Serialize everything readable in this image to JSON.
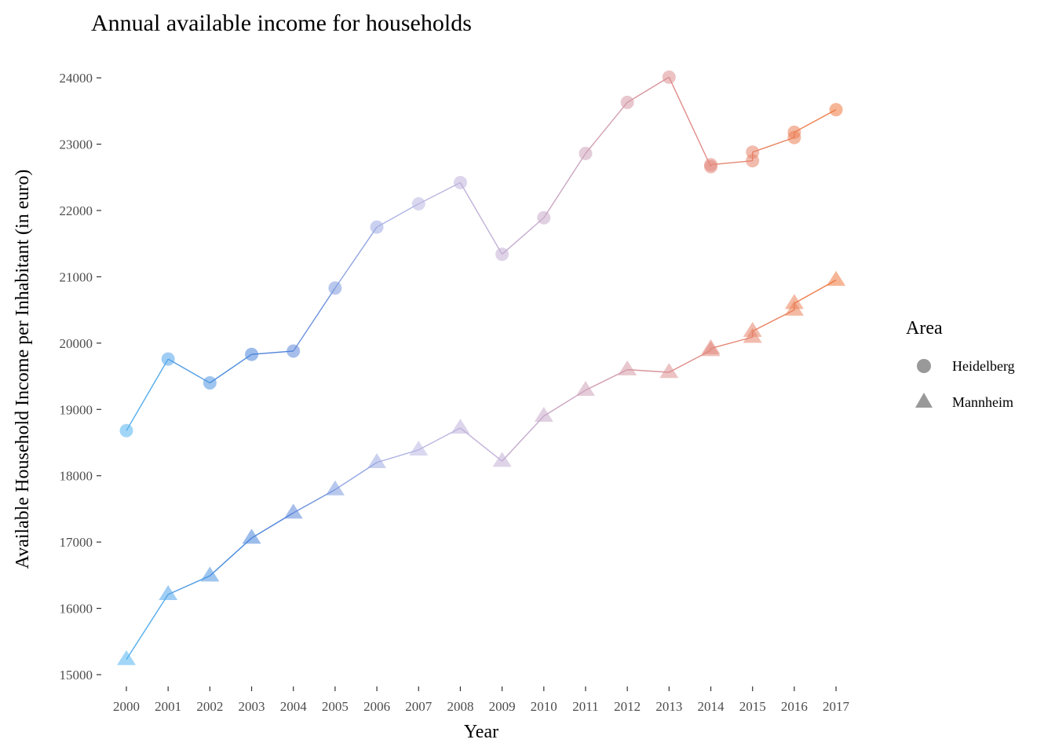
{
  "chart_data": {
    "type": "line",
    "title": "Annual available income for households",
    "xlabel": "Year",
    "ylabel": "Available Household Income per Inhabitant (in euro)",
    "ylim": [
      15000,
      24000
    ],
    "yticks": [
      15000,
      16000,
      17000,
      18000,
      19000,
      20000,
      21000,
      22000,
      23000,
      24000
    ],
    "x": [
      2000,
      2001,
      2002,
      2003,
      2004,
      2005,
      2006,
      2007,
      2008,
      2009,
      2010,
      2011,
      2012,
      2013,
      2014,
      2015,
      2016,
      2017
    ],
    "grid": false,
    "legend": {
      "title": "Area",
      "placement": "right"
    },
    "color_scale": [
      "#56b4f0",
      "#4a7fd8",
      "#b9b9e6",
      "#c9a9c9",
      "#e08a86",
      "#ef7a40"
    ],
    "series": [
      {
        "name": "Heidelberg",
        "marker": "circle",
        "points": [
          [
            2000,
            18680
          ],
          [
            2001,
            19760
          ],
          [
            2002,
            19400
          ],
          [
            2003,
            19830
          ],
          [
            2004,
            19880
          ],
          [
            2005,
            20830
          ],
          [
            2006,
            21750
          ],
          [
            2007,
            22100
          ],
          [
            2008,
            22420
          ],
          [
            2009,
            21340
          ],
          [
            2010,
            21890
          ],
          [
            2011,
            22860
          ],
          [
            2012,
            23630
          ],
          [
            2013,
            24010
          ],
          [
            2014,
            22660
          ],
          [
            2014,
            22690
          ],
          [
            2015,
            22750
          ],
          [
            2015,
            22880
          ],
          [
            2016,
            23100
          ],
          [
            2016,
            23180
          ],
          [
            2017,
            23520
          ]
        ]
      },
      {
        "name": "Mannheim",
        "marker": "triangle",
        "points": [
          [
            2000,
            15230
          ],
          [
            2001,
            16210
          ],
          [
            2002,
            16490
          ],
          [
            2003,
            17060
          ],
          [
            2004,
            17440
          ],
          [
            2005,
            17790
          ],
          [
            2006,
            18200
          ],
          [
            2007,
            18390
          ],
          [
            2008,
            18720
          ],
          [
            2009,
            18220
          ],
          [
            2010,
            18900
          ],
          [
            2011,
            19290
          ],
          [
            2012,
            19600
          ],
          [
            2013,
            19560
          ],
          [
            2014,
            19890
          ],
          [
            2014,
            19920
          ],
          [
            2015,
            20090
          ],
          [
            2015,
            20180
          ],
          [
            2016,
            20500
          ],
          [
            2016,
            20600
          ],
          [
            2017,
            20950
          ]
        ]
      }
    ]
  }
}
